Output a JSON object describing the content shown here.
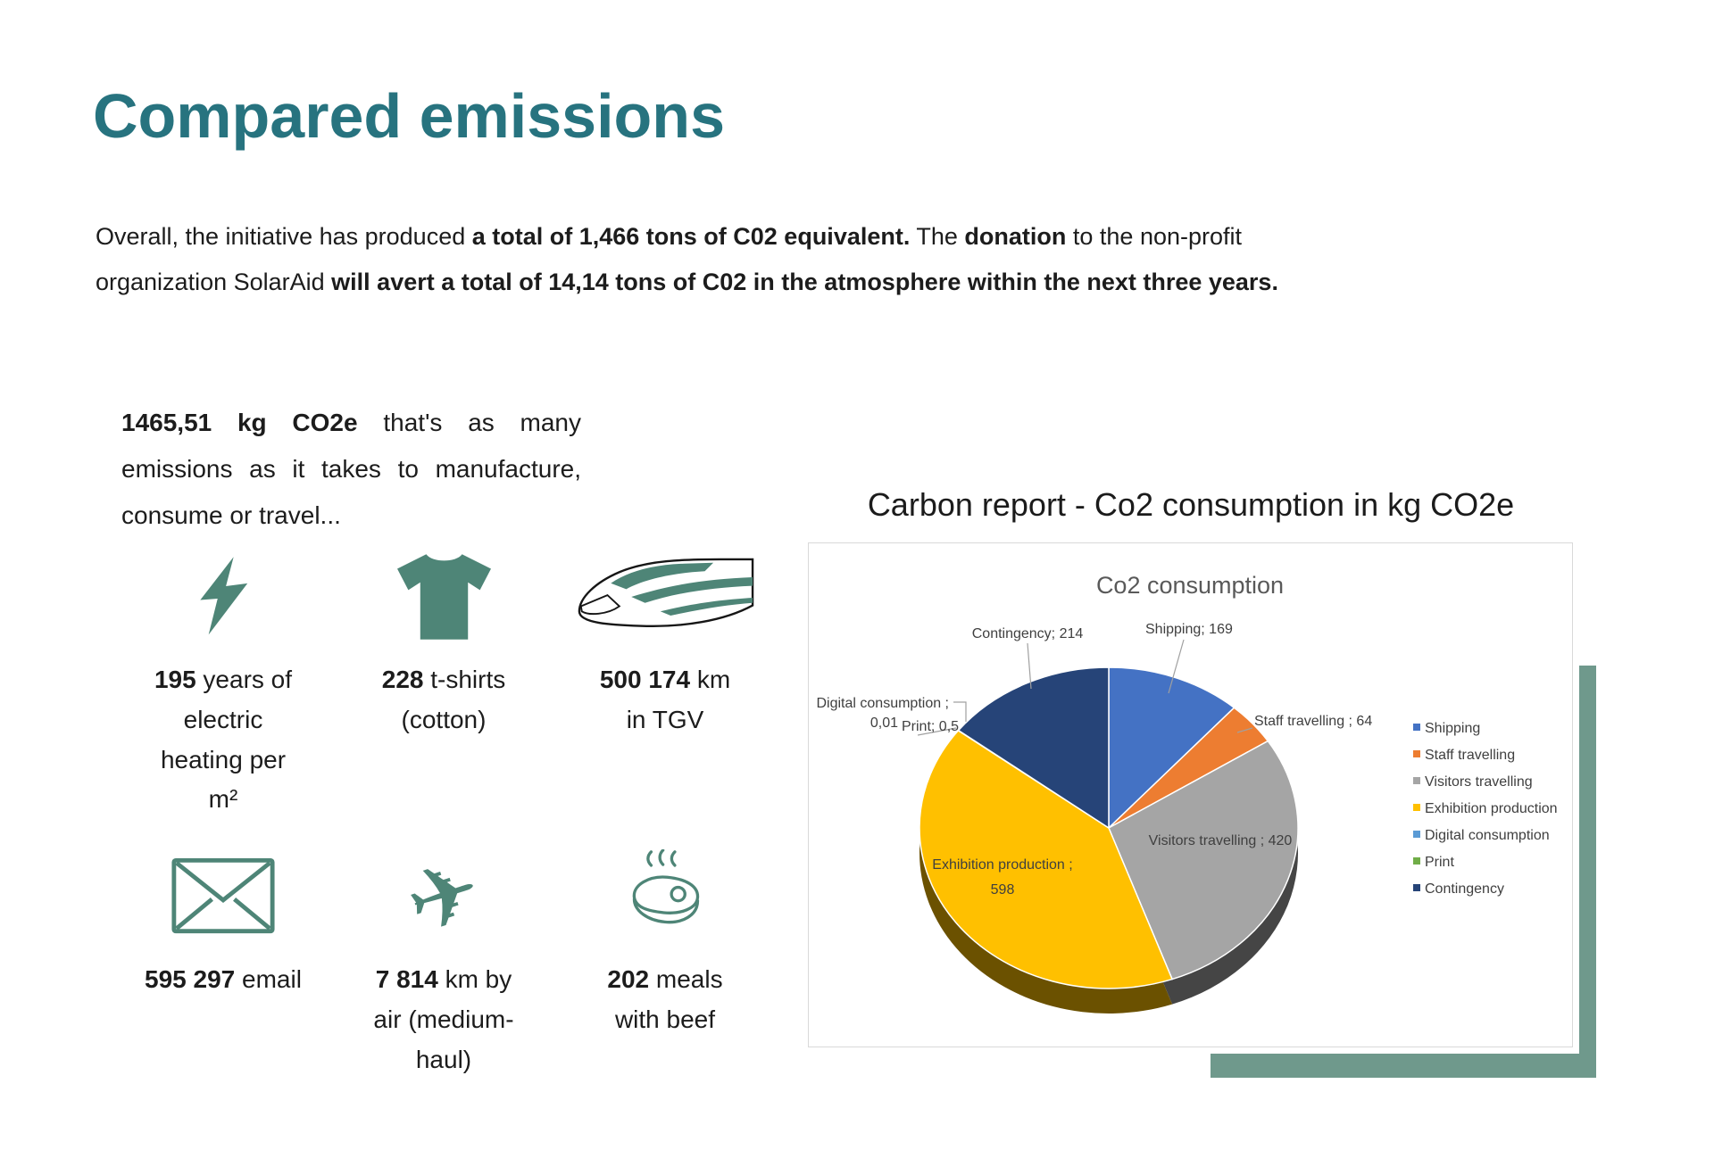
{
  "page": {
    "title": "Compared emissions",
    "intro": {
      "part1": "Overall, the initiative has produced ",
      "bold1": "a total of 1,466 tons of C02 equivalent.",
      "part2": " The ",
      "bold2": "donation",
      "part3": " to the non-profit organization SolarAid ",
      "bold3": "will avert a total of 14,14 tons of C02 in the atmosphere within the next three years."
    }
  },
  "equivalents": {
    "lead_bold": "1465,51 kg CO2e",
    "lead_rest": " that's as many emissions as it takes to manufacture, consume or travel...",
    "items": [
      {
        "icon": "lightning-icon",
        "value": "195",
        "text": " years of\nelectric\nheating per\nm²"
      },
      {
        "icon": "tshirt-icon",
        "value": "228",
        "text": " t-shirts\n(cotton)"
      },
      {
        "icon": "train-icon",
        "value": "500 174",
        "text": " km\nin TGV"
      },
      {
        "icon": "envelope-icon",
        "value": "595 297",
        "text": " email"
      },
      {
        "icon": "airplane-icon",
        "value": "7 814",
        "text": " km by\nair (medium-\nhaul)"
      },
      {
        "icon": "steak-icon",
        "value": "202",
        "text": " meals\nwith beef"
      }
    ]
  },
  "icons": {
    "airplane_glyph": "✈"
  },
  "chart_section": {
    "heading": "Carbon report - Co2 consumption in kg CO2e"
  },
  "chart_data": {
    "type": "pie",
    "style": "3d",
    "title": "Co2 consumption",
    "units": "kg CO2e",
    "total": 1465.51,
    "start_angle_deg": 0,
    "legend_position": "right",
    "slices": [
      {
        "name": "Shipping",
        "value": 169,
        "label": "Shipping; 169",
        "color": "#4472c4"
      },
      {
        "name": "Staff travelling",
        "value": 64,
        "label": "Staff travelling ; 64",
        "color": "#ed7d31"
      },
      {
        "name": "Visitors travelling",
        "value": 420,
        "label": "Visitors travelling ; 420",
        "color": "#a5a5a5"
      },
      {
        "name": "Exhibition production",
        "value": 598,
        "label": "Exhibition production ;\n598",
        "color": "#ffc000"
      },
      {
        "name": "Digital consumption",
        "value": 0.01,
        "label": "Digital consumption ;\n0,01",
        "color": "#5b9bd5"
      },
      {
        "name": "Print",
        "value": 0.5,
        "label": "Print; 0,5",
        "color": "#70ad47"
      },
      {
        "name": "Contingency",
        "value": 214,
        "label": "Contingency; 214",
        "color": "#264478"
      }
    ],
    "legend": [
      "Shipping",
      "Staff travelling",
      "Visitors travelling",
      "Exhibition production",
      "Digital consumption",
      "Print",
      "Contingency"
    ]
  },
  "colors": {
    "title_teal": "#27737f",
    "icon_teal": "#4e8577",
    "accent_green": "#6f998c",
    "text": "#1c1c1c",
    "chart_label": "#3f3f3f",
    "chart_title": "#595959"
  }
}
